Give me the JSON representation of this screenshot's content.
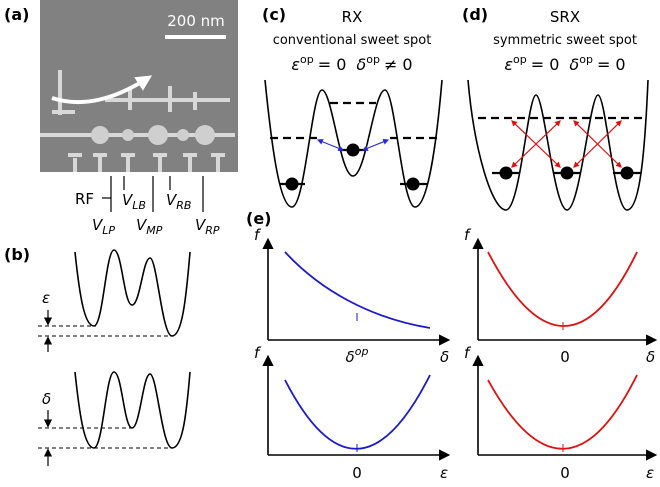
{
  "panel_labels": [
    "(a)",
    "(b)",
    "(c)",
    "(d)",
    "(e)"
  ],
  "sem": {
    "scale_bar": "200 nm",
    "rf": "RF",
    "gates": [
      {
        "v": "V",
        "sub": "LP"
      },
      {
        "v": "V",
        "sub": "LB"
      },
      {
        "v": "V",
        "sub": "MP"
      },
      {
        "v": "V",
        "sub": "RB"
      },
      {
        "v": "V",
        "sub": "RP"
      }
    ]
  },
  "b": {
    "eps": "ε",
    "delta": "δ"
  },
  "c": {
    "title": "RX",
    "subtitle": "conventional sweet spot",
    "eq": [
      {
        "sym": "ε",
        "sup": "op",
        "rel": "= 0"
      },
      {
        "sym": "δ",
        "sup": "op",
        "rel": "≠ 0"
      }
    ]
  },
  "d": {
    "title": "SRX",
    "subtitle": "symmetric sweet spot",
    "eq": [
      {
        "sym": "ε",
        "sup": "op",
        "rel": "= 0"
      },
      {
        "sym": "δ",
        "sup": "op",
        "rel": "= 0"
      }
    ]
  },
  "e": {
    "plots": [
      {
        "ylabel": "f",
        "xlabel": "δ",
        "tick": {
          "sym": "δ",
          "sup": "op"
        }
      },
      {
        "ylabel": "f",
        "xlabel": "δ",
        "tick": "0"
      },
      {
        "ylabel": "f",
        "xlabel": "ε",
        "tick": "0"
      },
      {
        "ylabel": "f",
        "xlabel": "ε",
        "tick": "0"
      }
    ]
  }
}
